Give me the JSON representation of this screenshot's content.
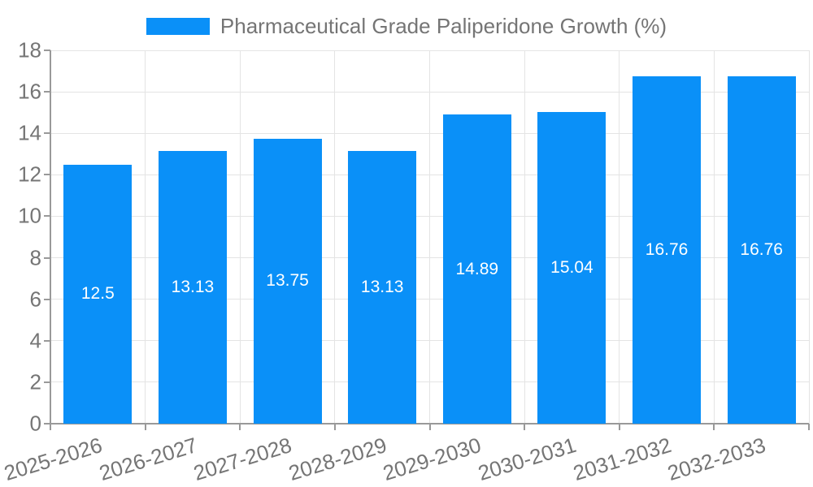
{
  "chart_data": {
    "type": "bar",
    "title": "Pharmaceutical Grade Paliperidone Growth (%)",
    "legend": {
      "position": "top",
      "entries": [
        "Pharmaceutical Grade Paliperidone Growth (%)"
      ]
    },
    "categories": [
      "2025-2026",
      "2026-2027",
      "2027-2028",
      "2028-2029",
      "2029-2030",
      "2030-2031",
      "2031-2032",
      "2032-2033"
    ],
    "values": [
      12.5,
      13.13,
      13.75,
      13.13,
      14.89,
      15.04,
      16.76,
      16.76
    ],
    "value_labels": [
      "12.5",
      "13.13",
      "13.75",
      "13.13",
      "14.89",
      "15.04",
      "16.76",
      "16.76"
    ],
    "xlabel": "",
    "ylabel": "",
    "ylim": [
      0,
      18
    ],
    "yticks": [
      0,
      2,
      4,
      6,
      8,
      10,
      12,
      14,
      16,
      18
    ],
    "grid": true,
    "x_label_rotation_deg": -17,
    "colors": {
      "bar": "#0a90f8",
      "value_label": "#ffffff",
      "axis_text": "#757575",
      "axis_line": "#999999",
      "gridline": "#e4e4e4",
      "background": "#ffffff"
    }
  }
}
